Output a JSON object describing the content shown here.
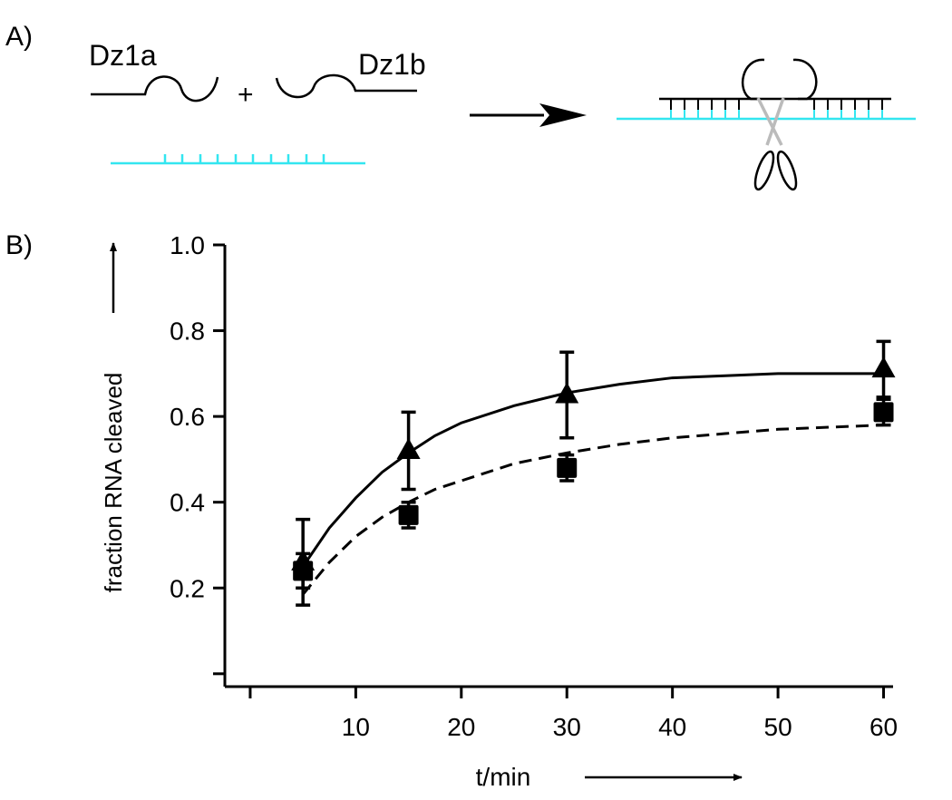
{
  "panel_a": {
    "label": "A)",
    "left_strand": "Dz1a",
    "plus": "+",
    "right_strand": "Dz1b"
  },
  "chart_data": {
    "type": "scatter",
    "panel_label": "B)",
    "xlabel": "t/min",
    "ylabel": "fraction RNA cleaved",
    "xlim": [
      -2.4,
      60.9
    ],
    "ylim": [
      -0.03,
      1.0
    ],
    "xticks": [
      10,
      20,
      30,
      40,
      50,
      60
    ],
    "xticks_minor": [
      0
    ],
    "yticks": [
      {
        "value": 0.2,
        "label": "0.2"
      },
      {
        "value": 0.4,
        "label": "0.4"
      },
      {
        "value": 0.6,
        "label": "0.6"
      },
      {
        "value": 0.8,
        "label": "0.8"
      },
      {
        "value": 1.0,
        "label": "1.0"
      }
    ],
    "yticks_minor": [
      0
    ],
    "x": [
      5,
      15,
      30,
      60
    ],
    "fit_x": [
      5,
      7.5,
      10,
      12.5,
      15,
      17.5,
      20,
      25,
      30,
      35,
      40,
      45,
      50,
      55,
      60
    ],
    "series": [
      {
        "marker": "triangle",
        "color": "#000000",
        "values": [
          0.26,
          0.52,
          0.65,
          0.71
        ],
        "errors": [
          0.1,
          0.09,
          0.1,
          0.065
        ],
        "fit_values": [
          0.25,
          0.34,
          0.41,
          0.47,
          0.515,
          0.555,
          0.585,
          0.625,
          0.655,
          0.675,
          0.69,
          0.695,
          0.7,
          0.7,
          0.7
        ],
        "fit_dashed": false
      },
      {
        "marker": "square",
        "color": "#000000",
        "values": [
          0.24,
          0.37,
          0.48,
          0.61
        ],
        "errors": [
          0.04,
          0.03,
          0.03,
          0.03
        ],
        "fit_values": [
          0.185,
          0.26,
          0.32,
          0.365,
          0.4,
          0.43,
          0.45,
          0.49,
          0.515,
          0.535,
          0.55,
          0.56,
          0.57,
          0.575,
          0.58
        ],
        "fit_dashed": true
      }
    ]
  }
}
